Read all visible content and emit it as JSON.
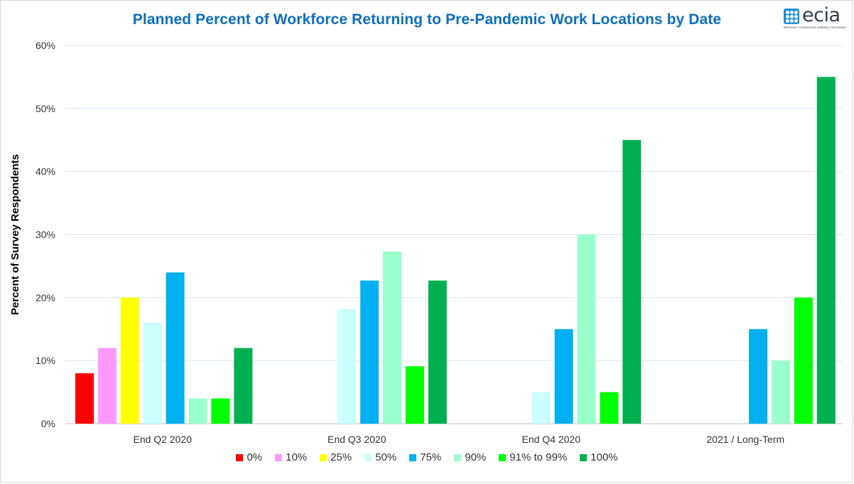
{
  "chart_data": {
    "type": "bar",
    "title": "Planned Percent of Workforce Returning to Pre-Pandemic Work Locations by Date",
    "ylabel": "Percent of Survey Respondents",
    "xlabel": "",
    "ylim": [
      0,
      60
    ],
    "yticks": [
      "0%",
      "10%",
      "20%",
      "30%",
      "40%",
      "50%",
      "60%"
    ],
    "ytick_values": [
      0,
      10,
      20,
      30,
      40,
      50,
      60
    ],
    "grid": true,
    "legend_placement": "bottom",
    "categories": [
      "End Q2 2020",
      "End Q3 2020",
      "End Q4 2020",
      "2021 / Long-Term"
    ],
    "series": [
      {
        "name": "0%",
        "color": "#ff0000",
        "values": [
          8,
          0,
          0,
          0
        ]
      },
      {
        "name": "10%",
        "color": "#ff99ff",
        "values": [
          12,
          0,
          0,
          0
        ]
      },
      {
        "name": "25%",
        "color": "#ffff00",
        "values": [
          20,
          0,
          0,
          0
        ]
      },
      {
        "name": "50%",
        "color": "#ccffff",
        "values": [
          16,
          18.2,
          5,
          0
        ]
      },
      {
        "name": "75%",
        "color": "#00b0f0",
        "values": [
          24,
          22.7,
          15,
          15
        ]
      },
      {
        "name": "90%",
        "color": "#99ffcc",
        "values": [
          4,
          27.3,
          30,
          10
        ]
      },
      {
        "name": "91% to 99%",
        "color": "#00ff00",
        "values": [
          4,
          9.1,
          5,
          20
        ]
      },
      {
        "name": "100%",
        "color": "#00b050",
        "values": [
          12,
          22.7,
          45,
          55
        ]
      }
    ]
  },
  "logo": {
    "name": "ecia",
    "tagline": "Electronic Components Industry Association"
  }
}
